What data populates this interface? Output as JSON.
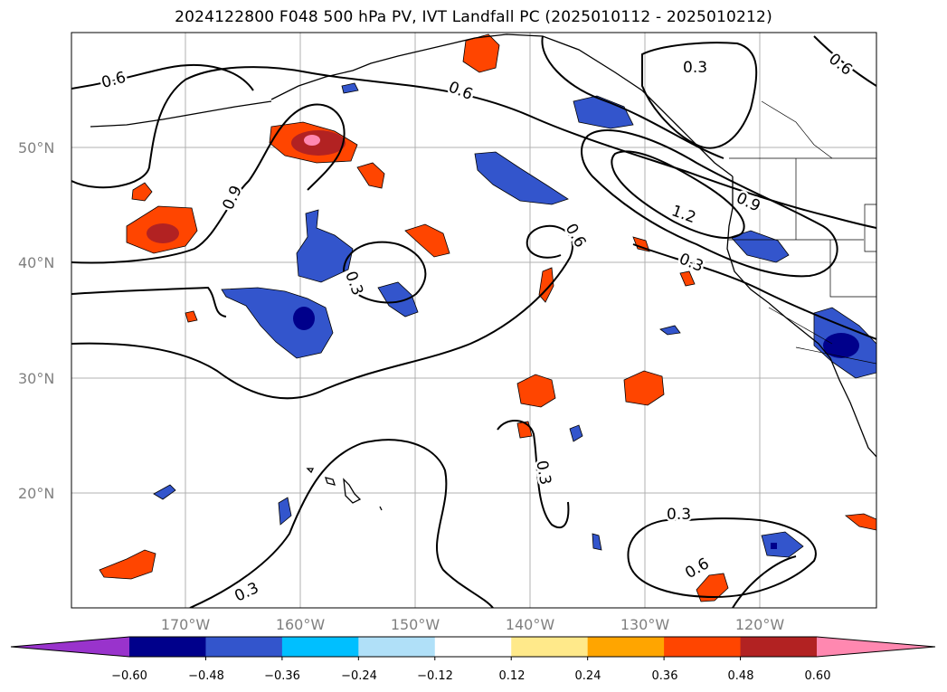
{
  "title": "2024122800 F048 500 hPa PV, IVT Landfall PC (2025010112 - 2025010212)",
  "map": {
    "lat_ticks": [
      "50°N",
      "40°N",
      "30°N",
      "20°N"
    ],
    "lon_ticks": [
      "170°W",
      "160°W",
      "150°W",
      "140°W",
      "130°W",
      "120°W"
    ],
    "contour_labels": [
      "0.6",
      "0.6",
      "0.3",
      "0.6",
      "0.9",
      "0.3",
      "0.6",
      "1.2",
      "0.9",
      "0.3",
      "0.3",
      "0.3",
      "0.6",
      "0.3"
    ]
  },
  "colorbar": {
    "colors": [
      "#9933cc",
      "#00008b",
      "#3355cc",
      "#00bfff",
      "#b0e0f8",
      "#ffffff",
      "#ffe98a",
      "#ffa500",
      "#ff4500",
      "#b22222",
      "#ff88b0"
    ],
    "tick_labels": [
      "−0.60",
      "−0.48",
      "−0.36",
      "−0.24",
      "−0.12",
      "0.12",
      "0.24",
      "0.36",
      "0.48",
      "0.60"
    ]
  }
}
